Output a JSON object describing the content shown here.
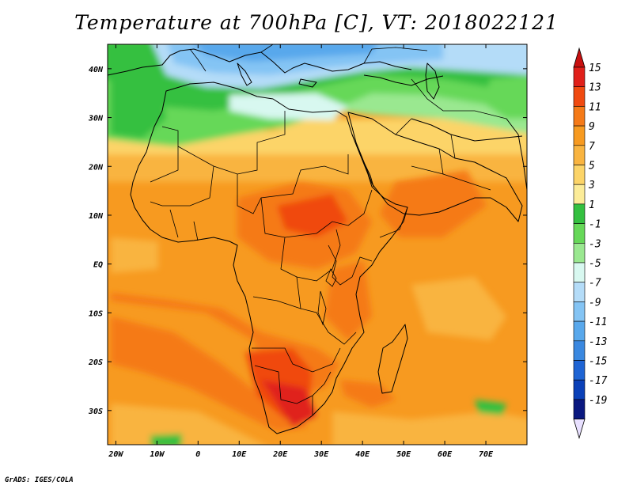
{
  "title": "Temperature at 700hPa [C], VT: 2018022121",
  "credit": "GrADS: IGES/COLA",
  "map": {
    "lon_range": [
      -22,
      80
    ],
    "lat_range": [
      -37,
      45
    ],
    "lon_ticks": [
      "20W",
      "10W",
      "0",
      "10E",
      "20E",
      "30E",
      "40E",
      "50E",
      "60E",
      "70E"
    ],
    "lat_ticks": [
      "40N",
      "30N",
      "20N",
      "10N",
      "EQ",
      "10S",
      "20S",
      "30S"
    ]
  },
  "colorbar": {
    "labels": [
      "15",
      "13",
      "11",
      "9",
      "7",
      "5",
      "3",
      "1",
      "-1",
      "-3",
      "-5",
      "-7",
      "-9",
      "-11",
      "-13",
      "-15",
      "-17",
      "-19"
    ],
    "colors": [
      "#e0201a",
      "#f04a10",
      "#f57a18",
      "#f79a20",
      "#f9b440",
      "#fcd468",
      "#fcec98",
      "#34c040",
      "#66d858",
      "#9ae890",
      "#d8f8f0",
      "#b4dcf8",
      "#84c4f4",
      "#58a8ec",
      "#3a88e0",
      "#1e64d4",
      "#0a40b8",
      "#0a1880"
    ],
    "top_arrow_color": "#c81010",
    "bottom_arrow_color": "#e8e0ff"
  }
}
